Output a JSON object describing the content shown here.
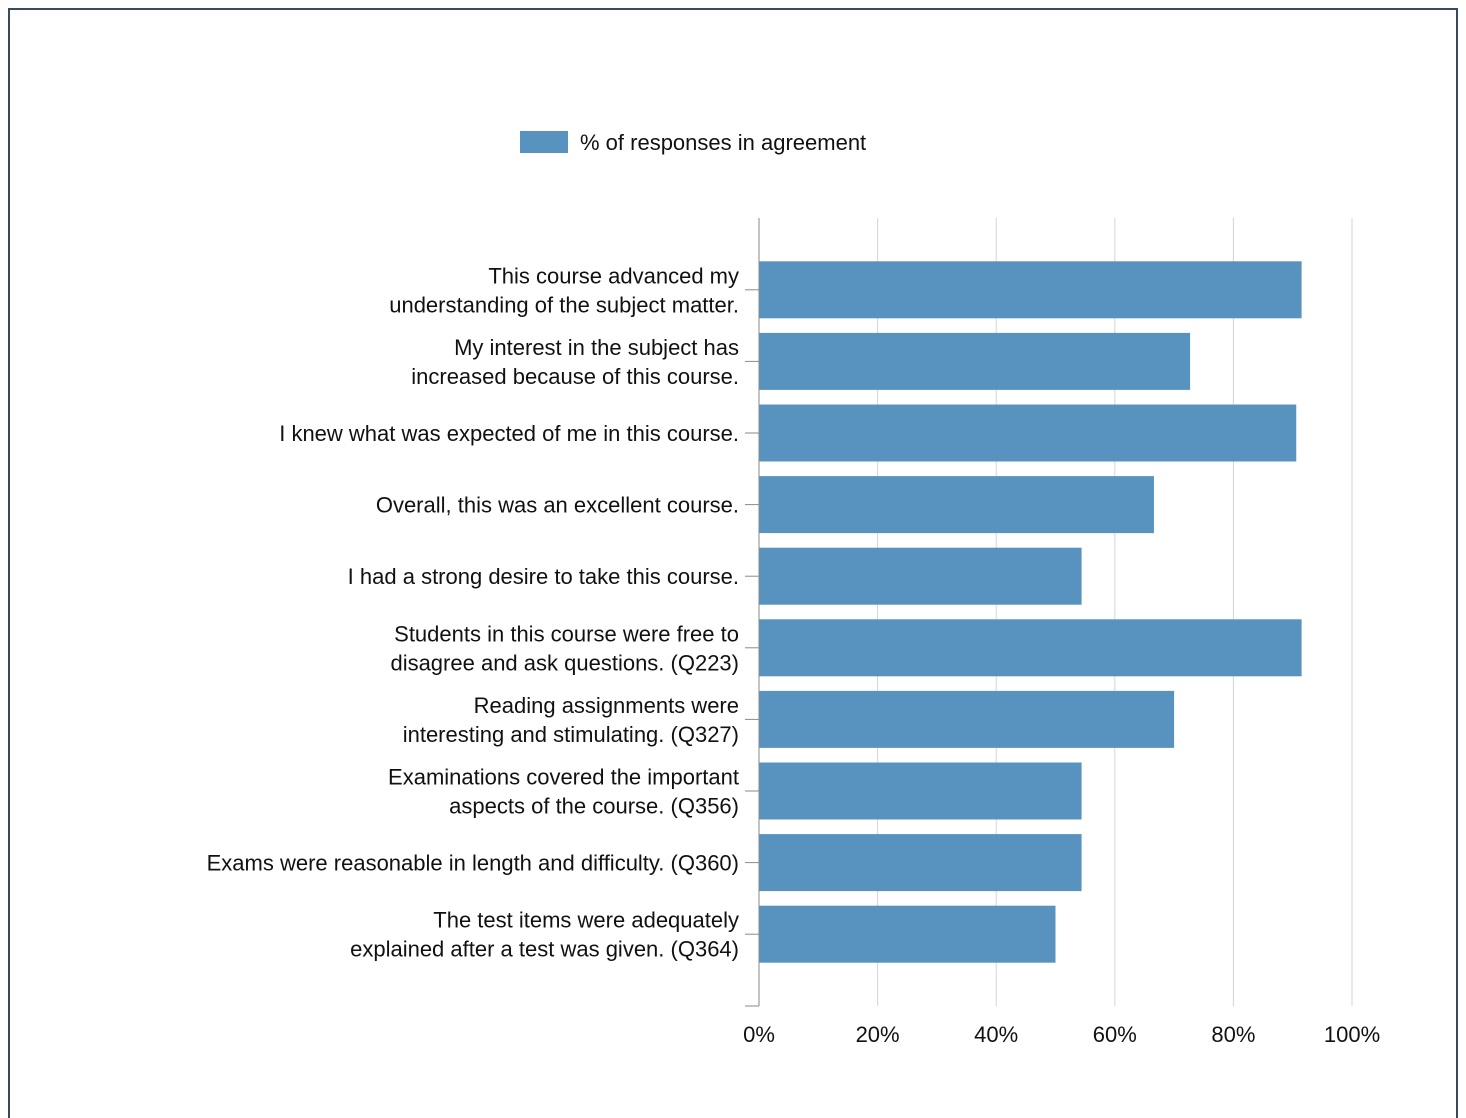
{
  "chart_data": {
    "type": "bar",
    "orientation": "horizontal",
    "legend": {
      "placement": "top",
      "entries": [
        {
          "label": "% of responses in agreement",
          "color": "#5893c0"
        }
      ]
    },
    "series": [
      {
        "name": "% of responses in agreement",
        "color": "#5893c0",
        "values": [
          91.5,
          72.7,
          90.6,
          66.6,
          54.4,
          91.5,
          70.0,
          54.4,
          54.4,
          50.0
        ]
      }
    ],
    "categories": [
      [
        "This course advanced my",
        "understanding of the subject matter."
      ],
      [
        "My interest in the subject has",
        "increased because of this course."
      ],
      [
        "I knew what was expected of me in this course."
      ],
      [
        "Overall, this was an excellent course."
      ],
      [
        "I had a strong desire to take this course."
      ],
      [
        "Students in this course were free to",
        "disagree and ask questions. (Q223)"
      ],
      [
        "Reading assignments were",
        "interesting and stimulating. (Q327)"
      ],
      [
        "Examinations covered the important",
        "aspects of the course. (Q356)"
      ],
      [
        "Exams were reasonable in length and difficulty. (Q360)"
      ],
      [
        "The test items were adequately",
        "explained after a test was given. (Q364)"
      ]
    ],
    "xlim": [
      0,
      100
    ],
    "xticks": [
      0,
      20,
      40,
      60,
      80,
      100
    ],
    "xtick_labels": [
      "0%",
      "20%",
      "40%",
      "60%",
      "80%",
      "100%"
    ],
    "grid": true,
    "title": "",
    "xlabel": "",
    "ylabel": ""
  }
}
